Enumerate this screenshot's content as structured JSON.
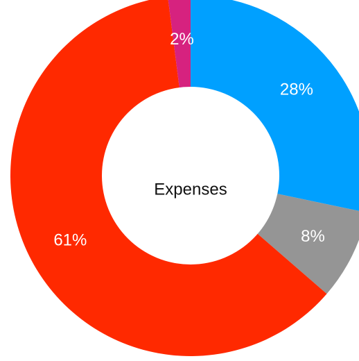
{
  "chart_data": {
    "type": "pie",
    "donut": true,
    "center_label": "Expenses",
    "slices": [
      {
        "value": 28,
        "label": "28%",
        "color": "#00a0ff"
      },
      {
        "value": 8,
        "label": "8%",
        "color": "#959595"
      },
      {
        "value": 61,
        "label": "61%",
        "color": "#ff2900"
      },
      {
        "value": 2,
        "label": "2%",
        "color": "#d6227f"
      }
    ]
  }
}
